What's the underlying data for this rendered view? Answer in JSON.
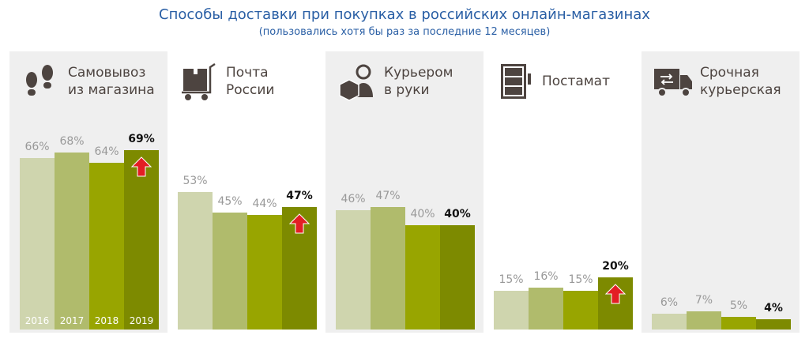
{
  "chart_data": {
    "type": "bar",
    "title": "Способы доставки при покупках в российских онлайн-магазинах",
    "subtitle": "(пользовались хотя бы раз за последние 12 месяцев)",
    "years": [
      "2016",
      "2017",
      "2018",
      "2019"
    ],
    "colors": [
      "#cfd5ae",
      "#b0bb6c",
      "#98a500",
      "#7d8a00"
    ],
    "arrow_color": "#e31e24",
    "ylim": [
      0,
      100
    ],
    "groups": [
      {
        "name": "Самовывоз из магазина",
        "lines": [
          "Самовывоз",
          "из магазина"
        ],
        "icon": "footprints-icon",
        "values": [
          66,
          68,
          64,
          69
        ],
        "labels": [
          "66%",
          "68%",
          "64%",
          "69%"
        ],
        "up": true
      },
      {
        "name": "Почта России",
        "lines": [
          "Почта",
          "России"
        ],
        "icon": "parcel-cart-icon",
        "values": [
          53,
          45,
          44,
          47
        ],
        "labels": [
          "53%",
          "45%",
          "44%",
          "47%"
        ],
        "up": true
      },
      {
        "name": "Курьером в руки",
        "lines": [
          "Курьером",
          "в руки"
        ],
        "icon": "courier-icon",
        "values": [
          46,
          47,
          40,
          40
        ],
        "labels": [
          "46%",
          "47%",
          "40%",
          "40%"
        ],
        "up": false
      },
      {
        "name": "Постамат",
        "lines": [
          "Постамат"
        ],
        "icon": "parcel-locker-icon",
        "values": [
          15,
          16,
          15,
          20
        ],
        "labels": [
          "15%",
          "16%",
          "15%",
          "20%"
        ],
        "up": true
      },
      {
        "name": "Срочная курьерская",
        "lines": [
          "Срочная",
          "курьерская"
        ],
        "icon": "delivery-truck-icon",
        "values": [
          6,
          7,
          5,
          4
        ],
        "labels": [
          "6%",
          "7%",
          "5%",
          "4%"
        ],
        "up": false
      }
    ]
  }
}
